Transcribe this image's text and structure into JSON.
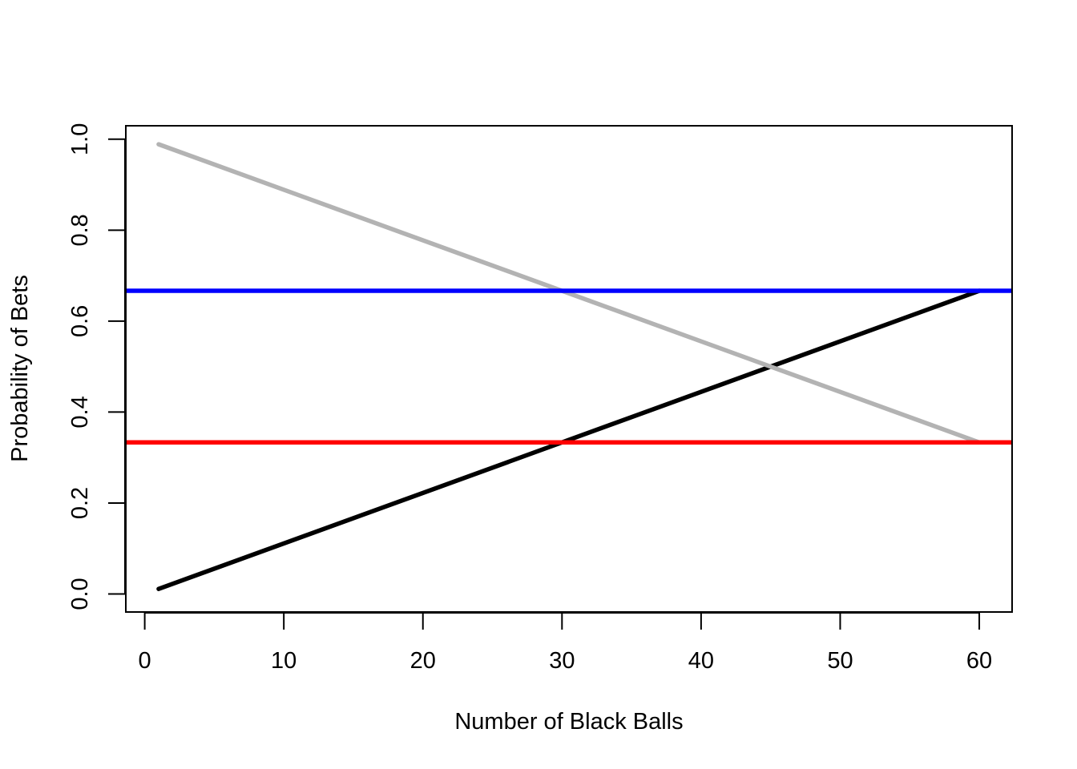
{
  "chart_data": {
    "type": "line",
    "title": "",
    "xlabel": "Number of Black Balls",
    "ylabel": "Probability of Bets",
    "xlim": [
      -1.36,
      62.36
    ],
    "ylim": [
      -0.0396,
      1.0296
    ],
    "x_ticks": [
      0,
      10,
      20,
      30,
      40,
      50,
      60
    ],
    "x_tick_labels": [
      "0",
      "10",
      "20",
      "30",
      "40",
      "50",
      "60"
    ],
    "y_ticks": [
      0.0,
      0.2,
      0.4,
      0.6,
      0.8,
      1.0
    ],
    "y_tick_labels": [
      "0.0",
      "0.2",
      "0.4",
      "0.6",
      "0.8",
      "1.0"
    ],
    "grid": false,
    "legend": "none",
    "series": [
      {
        "color": "#000000",
        "kind": "segment",
        "x": [
          1,
          60
        ],
        "y": [
          0.0111,
          0.6667
        ]
      },
      {
        "color": "#b3b3b3",
        "kind": "segment",
        "x": [
          1,
          60
        ],
        "y": [
          0.9889,
          0.3333
        ]
      },
      {
        "color": "#0000ff",
        "kind": "horizontal",
        "y": 0.6667
      },
      {
        "color": "#ff0000",
        "kind": "horizontal",
        "y": 0.3333
      }
    ]
  }
}
